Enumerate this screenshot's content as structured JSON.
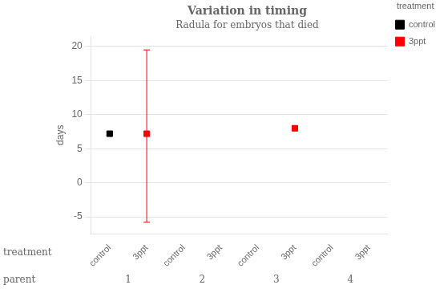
{
  "chart_data": {
    "type": "scatter",
    "title": "Variation in timing",
    "subtitle": "Radula for embryos that died",
    "ylabel": "days",
    "xlabel": "treatment",
    "group_label": "parent",
    "categories": [
      "control",
      "3ppt",
      "control",
      "3ppt",
      "control",
      "3ppt",
      "control",
      "3ppt"
    ],
    "groups": [
      "1",
      "2",
      "3",
      "4"
    ],
    "ylim": [
      -7.5,
      21.5
    ],
    "yticks": [
      -5,
      0,
      5,
      10,
      15,
      20
    ],
    "grid": "y",
    "legend": "right",
    "legend_title": "treatment",
    "marker": "square",
    "series": [
      {
        "name": "control",
        "color": "black",
        "values": [
          7.2,
          null,
          null,
          null,
          null,
          null,
          null,
          null
        ],
        "ci_lo": [
          7.0,
          null,
          null,
          null,
          null,
          null,
          null,
          null
        ],
        "ci_hi": [
          7.4,
          null,
          null,
          null,
          null,
          null,
          null,
          null
        ]
      },
      {
        "name": "3ppt",
        "color": "red",
        "values": [
          null,
          7.2,
          null,
          null,
          null,
          8.0,
          null,
          null
        ],
        "ci_lo": [
          null,
          -5.8,
          null,
          null,
          null,
          7.7,
          null,
          null
        ],
        "ci_hi": [
          null,
          19.5,
          null,
          null,
          null,
          8.3,
          null,
          null
        ]
      }
    ]
  }
}
